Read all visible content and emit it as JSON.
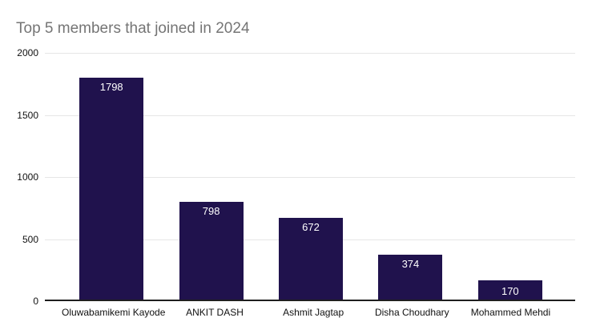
{
  "title": "Top 5 members that joined in 2024",
  "colors": {
    "bar": "#20124d",
    "title": "#757575",
    "grid": "#e6e6e6",
    "axis": "#1f1f1f",
    "tick_label": "#111111",
    "value_label": "#ffffff",
    "background": "#ffffff"
  },
  "chart_data": {
    "type": "bar",
    "title": "Top 5 members that joined in 2024",
    "categories": [
      "Oluwabamikemi Kayode",
      "ANKIT DASH",
      "Ashmit Jagtap",
      "Disha Choudhary",
      "Mohammed Mehdi"
    ],
    "values": [
      1798,
      798,
      672,
      374,
      170
    ],
    "xlabel": "",
    "ylabel": "",
    "ylim": [
      0,
      2000
    ],
    "yticks": [
      0,
      500,
      1000,
      1500,
      2000
    ],
    "grid": true,
    "legend": "none",
    "value_labels": "inside-top-white"
  }
}
